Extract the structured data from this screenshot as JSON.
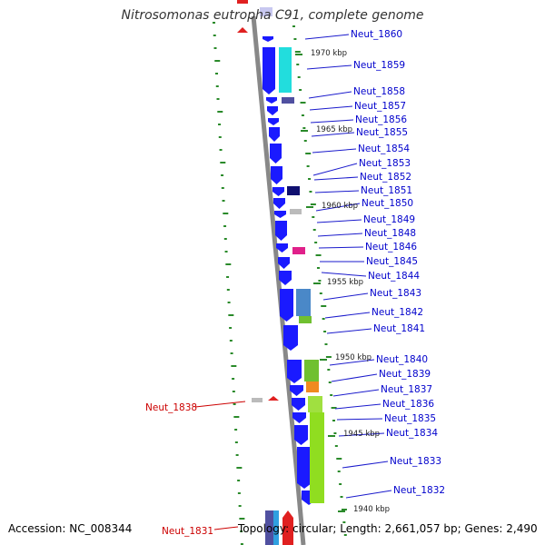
{
  "title": "Nitrosomonas eutropha C91, complete genome",
  "footer": {
    "accession": "Accession: NC_008344",
    "topology": "Topology: circular; Length: 2,661,057 bp; Genes: 2,490"
  },
  "colors": {
    "gene_forward": "#1a1aff",
    "label_blue": "#0000cc",
    "label_red": "#cc0000",
    "tick_green": "#2a8a2a",
    "backbone": "#888888"
  },
  "scale_labels": [
    "1970 kbp",
    "1965 kbp",
    "1960 kbp",
    "1955 kbp",
    "1950 kbp",
    "1945 kbp",
    "1940 kbp"
  ],
  "gene_labels": [
    "Neut_1860",
    "Neut_1859",
    "Neut_1858",
    "Neut_1857",
    "Neut_1856",
    "Neut_1855",
    "Neut_1854",
    "Neut_1853",
    "Neut_1852",
    "Neut_1851",
    "Neut_1850",
    "Neut_1849",
    "Neut_1848",
    "Neut_1846",
    "Neut_1845",
    "Neut_1844",
    "Neut_1843",
    "Neut_1842",
    "Neut_1841",
    "Neut_1840",
    "Neut_1839",
    "Neut_1837",
    "Neut_1836",
    "Neut_1835",
    "Neut_1834",
    "Neut_1833",
    "Neut_1832"
  ],
  "left_labels": [
    "Neut_1838",
    "Neut_1831"
  ]
}
